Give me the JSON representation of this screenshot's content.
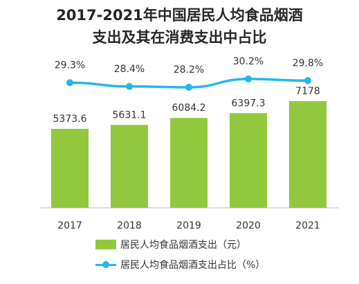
{
  "title": {
    "line1": "2017-2021年中国居民人均食品烟酒",
    "line2": "支出及其在消费支出中占比"
  },
  "colors": {
    "bar": "#92c83e",
    "line": "#22b8e9",
    "axis": "#bfbfbf",
    "text": "#333333"
  },
  "chart_data": {
    "type": "bar",
    "title": "2017-2021年中国居民人均食品烟酒支出及其在消费支出中占比",
    "categories": [
      "2017",
      "2018",
      "2019",
      "2020",
      "2021"
    ],
    "series": [
      {
        "name": "居民人均食品烟酒支出（元）",
        "type": "bar",
        "values": [
          5373.6,
          5631.1,
          6084.2,
          6397.3,
          7178
        ],
        "labels": [
          "5373.6",
          "5631.1",
          "6084.2",
          "6397.3",
          "7178"
        ]
      },
      {
        "name": "居民人均食品烟酒支出占比（%）",
        "type": "line",
        "values": [
          29.3,
          28.4,
          28.2,
          30.2,
          29.8
        ],
        "labels": [
          "29.3%",
          "28.4%",
          "28.2%",
          "30.2%",
          "29.8%"
        ]
      }
    ],
    "legend_position": "bottom",
    "grid": false
  },
  "legend": {
    "bar_label": "居民人均食品烟酒支出（元）",
    "line_label": "居民人均食品烟酒支出占比（%）"
  }
}
